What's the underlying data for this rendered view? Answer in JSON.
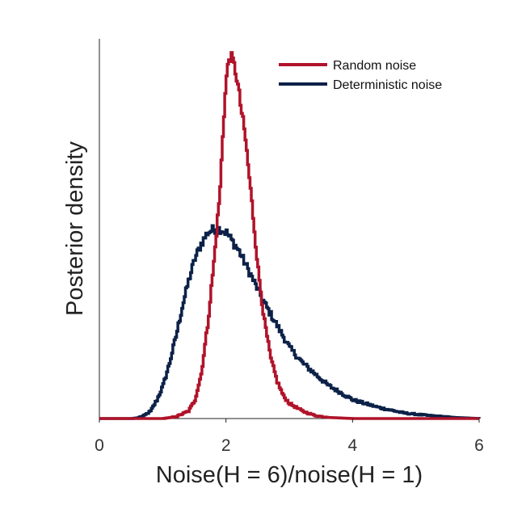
{
  "chart_data": {
    "type": "line",
    "title": "",
    "xlabel": "Noise(H = 6)/noise(H = 1)",
    "ylabel": "Posterior density",
    "xlim": [
      0,
      6
    ],
    "ylim": [
      0,
      1.0
    ],
    "xticks": [
      "0",
      "2",
      "4",
      "6"
    ],
    "yticks": [],
    "grid": false,
    "legend_position": "top-right",
    "series": [
      {
        "name": "Random noise",
        "color": "#b0132a",
        "x": [
          0.0,
          0.5,
          1.0,
          1.2,
          1.4,
          1.5,
          1.6,
          1.7,
          1.8,
          1.9,
          1.95,
          2.0,
          2.05,
          2.1,
          2.15,
          2.2,
          2.3,
          2.4,
          2.5,
          2.6,
          2.7,
          2.8,
          2.9,
          3.0,
          3.2,
          3.4,
          3.6,
          4.0,
          5.0,
          6.0
        ],
        "y": [
          0.0,
          0.0,
          0.0,
          0.005,
          0.02,
          0.05,
          0.12,
          0.25,
          0.42,
          0.62,
          0.8,
          0.92,
          0.98,
          0.96,
          0.93,
          0.87,
          0.75,
          0.58,
          0.4,
          0.26,
          0.16,
          0.1,
          0.06,
          0.04,
          0.02,
          0.008,
          0.003,
          0.0,
          0.0,
          0.0
        ]
      },
      {
        "name": "Deterministic noise",
        "color": "#0c2148",
        "x": [
          0.0,
          0.5,
          0.6,
          0.7,
          0.8,
          0.9,
          1.0,
          1.1,
          1.2,
          1.3,
          1.4,
          1.5,
          1.6,
          1.7,
          1.8,
          1.9,
          2.0,
          2.2,
          2.4,
          2.6,
          2.8,
          3.0,
          3.2,
          3.4,
          3.6,
          3.8,
          4.0,
          4.4,
          4.8,
          5.2,
          5.6,
          6.0
        ],
        "y": [
          0.0,
          0.0,
          0.002,
          0.008,
          0.02,
          0.05,
          0.09,
          0.15,
          0.22,
          0.3,
          0.37,
          0.43,
          0.47,
          0.5,
          0.51,
          0.51,
          0.5,
          0.45,
          0.38,
          0.31,
          0.25,
          0.19,
          0.15,
          0.12,
          0.09,
          0.07,
          0.05,
          0.03,
          0.015,
          0.008,
          0.003,
          0.0
        ]
      }
    ]
  }
}
